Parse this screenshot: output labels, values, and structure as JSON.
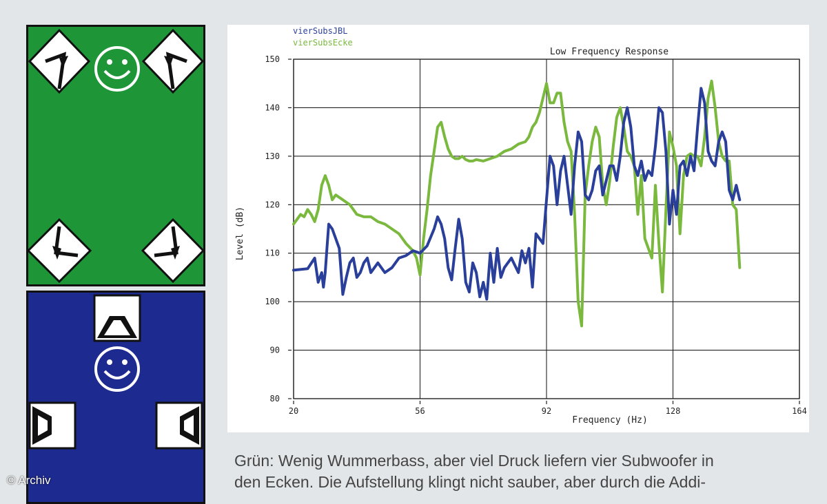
{
  "chart_data": {
    "type": "line",
    "title": "Low Frequency Response",
    "xlabel": "Frequency (Hz)",
    "ylabel": "Level (dB)",
    "xlim": [
      20,
      164
    ],
    "ylim": [
      80,
      150
    ],
    "xticks": [
      20,
      56,
      92,
      128,
      164
    ],
    "yticks": [
      80,
      90,
      100,
      110,
      120,
      130,
      140,
      150
    ],
    "grid": true,
    "legend_position": "top-left",
    "series": [
      {
        "name": "vierSubsJBL",
        "color": "#2a3f9a",
        "x": [
          20,
          24,
          26,
          27,
          28,
          28.5,
          29,
          29.5,
          30,
          31,
          33,
          34,
          35,
          36,
          37,
          38,
          39,
          40,
          41,
          42,
          44,
          46,
          48,
          50,
          52,
          54,
          56,
          58,
          60,
          61,
          62,
          63,
          64,
          65,
          66,
          67,
          68,
          69,
          70,
          71,
          72,
          73,
          74,
          75,
          76,
          77,
          78,
          79,
          80,
          82,
          84,
          85,
          86,
          87,
          88,
          89,
          90,
          91,
          92,
          93,
          94,
          95,
          96,
          97,
          98,
          99,
          100,
          101,
          102,
          103,
          104,
          105,
          106,
          107,
          108,
          109,
          110,
          111,
          112,
          113,
          114,
          115,
          116,
          117,
          118,
          119,
          120,
          121,
          122,
          123,
          124,
          125,
          126,
          127,
          128,
          129,
          130,
          131,
          132,
          133,
          134,
          135,
          136,
          137,
          138,
          139,
          140,
          141,
          142,
          143,
          144,
          145,
          146,
          147
        ],
        "y": [
          106.5,
          106.8,
          109,
          104,
          106,
          103,
          106,
          111,
          116,
          115,
          111,
          101.5,
          105,
          108,
          109,
          105,
          106,
          108,
          109,
          106,
          108,
          106,
          107,
          109,
          109.5,
          110.5,
          110,
          111.5,
          115,
          117.5,
          116,
          113,
          107,
          104.5,
          111,
          117,
          113,
          104,
          102,
          108,
          106,
          101,
          104,
          100.5,
          110,
          104,
          111,
          105,
          107,
          109,
          106,
          110.5,
          108,
          111,
          103,
          114,
          113,
          112,
          121,
          130,
          128,
          120,
          127,
          130,
          124,
          118,
          128,
          135,
          133,
          122,
          121,
          123,
          127,
          128,
          122,
          125,
          128,
          128,
          125,
          130,
          137,
          140,
          136,
          128,
          126,
          129,
          125,
          127,
          126,
          132,
          140,
          139,
          131,
          116,
          123,
          118,
          128,
          129,
          126,
          130,
          127,
          136,
          144,
          141,
          131,
          129,
          128,
          133,
          135,
          133,
          123,
          121,
          124,
          121
        ],
        "x_resample_note": ""
      },
      {
        "name": "vierSubsEcke",
        "color": "#7ab83e",
        "x": [
          20,
          21,
          22,
          23,
          24,
          25,
          26,
          27,
          28,
          29,
          30,
          31,
          32,
          33,
          34,
          35,
          36,
          38,
          40,
          42,
          44,
          46,
          48,
          50,
          52,
          54,
          55,
          56,
          57,
          58,
          59,
          60,
          61,
          62,
          63,
          64,
          65,
          66,
          67,
          68,
          69,
          70,
          71,
          72,
          74,
          76,
          78,
          80,
          82,
          84,
          86,
          87,
          88,
          89,
          90,
          91,
          92,
          93,
          94,
          95,
          96,
          97,
          98,
          99,
          100,
          101,
          102,
          103,
          104,
          105,
          106,
          107,
          108,
          109,
          110,
          111,
          112,
          113,
          114,
          115,
          116,
          117,
          118,
          119,
          120,
          121,
          122,
          123,
          124,
          125,
          126,
          127,
          128,
          129,
          130,
          131,
          132,
          133,
          134,
          135,
          136,
          137,
          138,
          139,
          140,
          141,
          142,
          143,
          144,
          145,
          146,
          147
        ],
        "y": [
          116,
          117,
          118,
          117.5,
          119,
          118,
          116.5,
          119,
          124,
          126,
          124,
          121,
          122,
          121.5,
          121,
          120.5,
          120,
          118,
          117.5,
          117.5,
          116.5,
          116,
          115,
          114,
          112,
          110.5,
          109,
          105.5,
          113,
          119,
          126,
          131,
          136,
          137,
          134,
          131.5,
          130,
          129.5,
          129.5,
          130,
          129.3,
          129,
          129,
          129.3,
          129,
          129.5,
          130,
          131,
          131.5,
          132.5,
          133,
          134,
          136,
          137,
          139,
          142,
          145,
          141,
          141,
          143,
          143,
          137,
          133,
          131,
          118,
          100,
          95,
          122,
          128,
          133,
          136,
          134,
          124,
          120,
          125,
          132,
          138,
          140,
          136,
          131,
          130,
          128,
          118,
          126,
          113,
          111,
          109,
          124,
          112,
          102,
          119,
          135,
          132,
          128,
          114,
          126,
          130,
          130.5,
          130,
          130,
          128,
          134,
          142,
          145.5,
          140,
          133,
          130,
          129,
          129,
          120,
          119,
          107
        ]
      }
    ]
  },
  "rooms": {
    "green_color": "#1e9637",
    "blue_color": "#1d2a8f"
  },
  "caption": {
    "line1": "Grün: Wenig Wummerbass, aber viel Druck liefern vier Subwoofer in",
    "line2": "den Ecken. Die Aufstellung klingt nicht sauber, aber durch die Addi-"
  },
  "credit": "© Archiv"
}
